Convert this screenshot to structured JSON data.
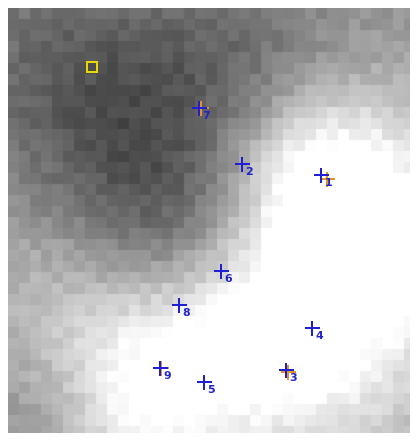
{
  "colors": {
    "reference": "#1f1fd6",
    "measured": "#e0962a",
    "label": "#2424c8",
    "roi": "#e8d800"
  },
  "roi_icon": "square-outline",
  "markers": [
    {
      "id": "1",
      "label": "1"
    },
    {
      "id": "2",
      "label": "2"
    },
    {
      "id": "3",
      "label": "3"
    },
    {
      "id": "4",
      "label": "4"
    },
    {
      "id": "5",
      "label": "5"
    },
    {
      "id": "6",
      "label": "6"
    },
    {
      "id": "7",
      "label": "7"
    },
    {
      "id": "8",
      "label": "8"
    },
    {
      "id": "9",
      "label": "9"
    }
  ]
}
